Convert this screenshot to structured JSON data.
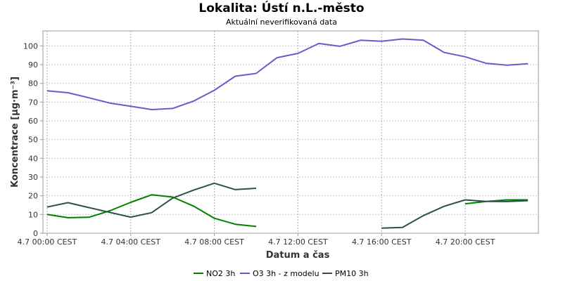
{
  "chart_data": {
    "type": "line",
    "title": "Lokalita: Ústí n.L.-město",
    "subtitle": "Aktuální neverifikovaná data",
    "xlabel": "Datum a čas",
    "ylabel": "Koncentrace [µg·m⁻³]",
    "ylim": [
      0,
      108
    ],
    "yticks": [
      0,
      10,
      20,
      30,
      40,
      50,
      60,
      70,
      80,
      90,
      100
    ],
    "xlim": [
      -0.2,
      23.5
    ],
    "xticks": [
      {
        "hour": 0,
        "label": "4.7 00:00 CEST"
      },
      {
        "hour": 4,
        "label": "4.7 04:00 CEST"
      },
      {
        "hour": 8,
        "label": "4.7 08:00 CEST"
      },
      {
        "hour": 12,
        "label": "4.7 12:00 CEST"
      },
      {
        "hour": 16,
        "label": "4.7 16:00 CEST"
      },
      {
        "hour": 20,
        "label": "4.7 20:00 CEST"
      }
    ],
    "grid": true,
    "legend_position": "bottom",
    "x": [
      0,
      1,
      2,
      3,
      4,
      5,
      6,
      7,
      8,
      9,
      10,
      11,
      12,
      13,
      14,
      15,
      16,
      17,
      18,
      19,
      20,
      21,
      22,
      23
    ],
    "series": [
      {
        "name": "NO2 3h",
        "color": "#008000",
        "values": [
          10,
          8.3,
          8.5,
          12,
          16.5,
          20.5,
          19.3,
          14.5,
          8,
          4.8,
          3.6,
          null,
          null,
          null,
          null,
          null,
          null,
          null,
          null,
          null,
          15.7,
          17,
          17.8,
          17.8
        ]
      },
      {
        "name": "O3 3h - z modelu",
        "color": "#6A5ACD",
        "values": [
          76,
          75,
          72.3,
          69.5,
          67.8,
          66,
          66.6,
          70.5,
          76.3,
          83.8,
          85.3,
          93.7,
          96,
          101.3,
          99.8,
          103,
          102.5,
          103.7,
          103,
          96.5,
          94.2,
          90.7,
          89.7,
          90.5
        ]
      },
      {
        "name": "PM10 3h",
        "color": "#2F4F4F",
        "values": [
          14,
          16.3,
          13.7,
          11.1,
          8.6,
          11,
          18.7,
          23,
          26.7,
          23.3,
          24,
          null,
          null,
          null,
          null,
          null,
          2.7,
          3.1,
          9.4,
          14.4,
          17.8,
          17,
          16.9,
          17.4
        ]
      }
    ]
  }
}
